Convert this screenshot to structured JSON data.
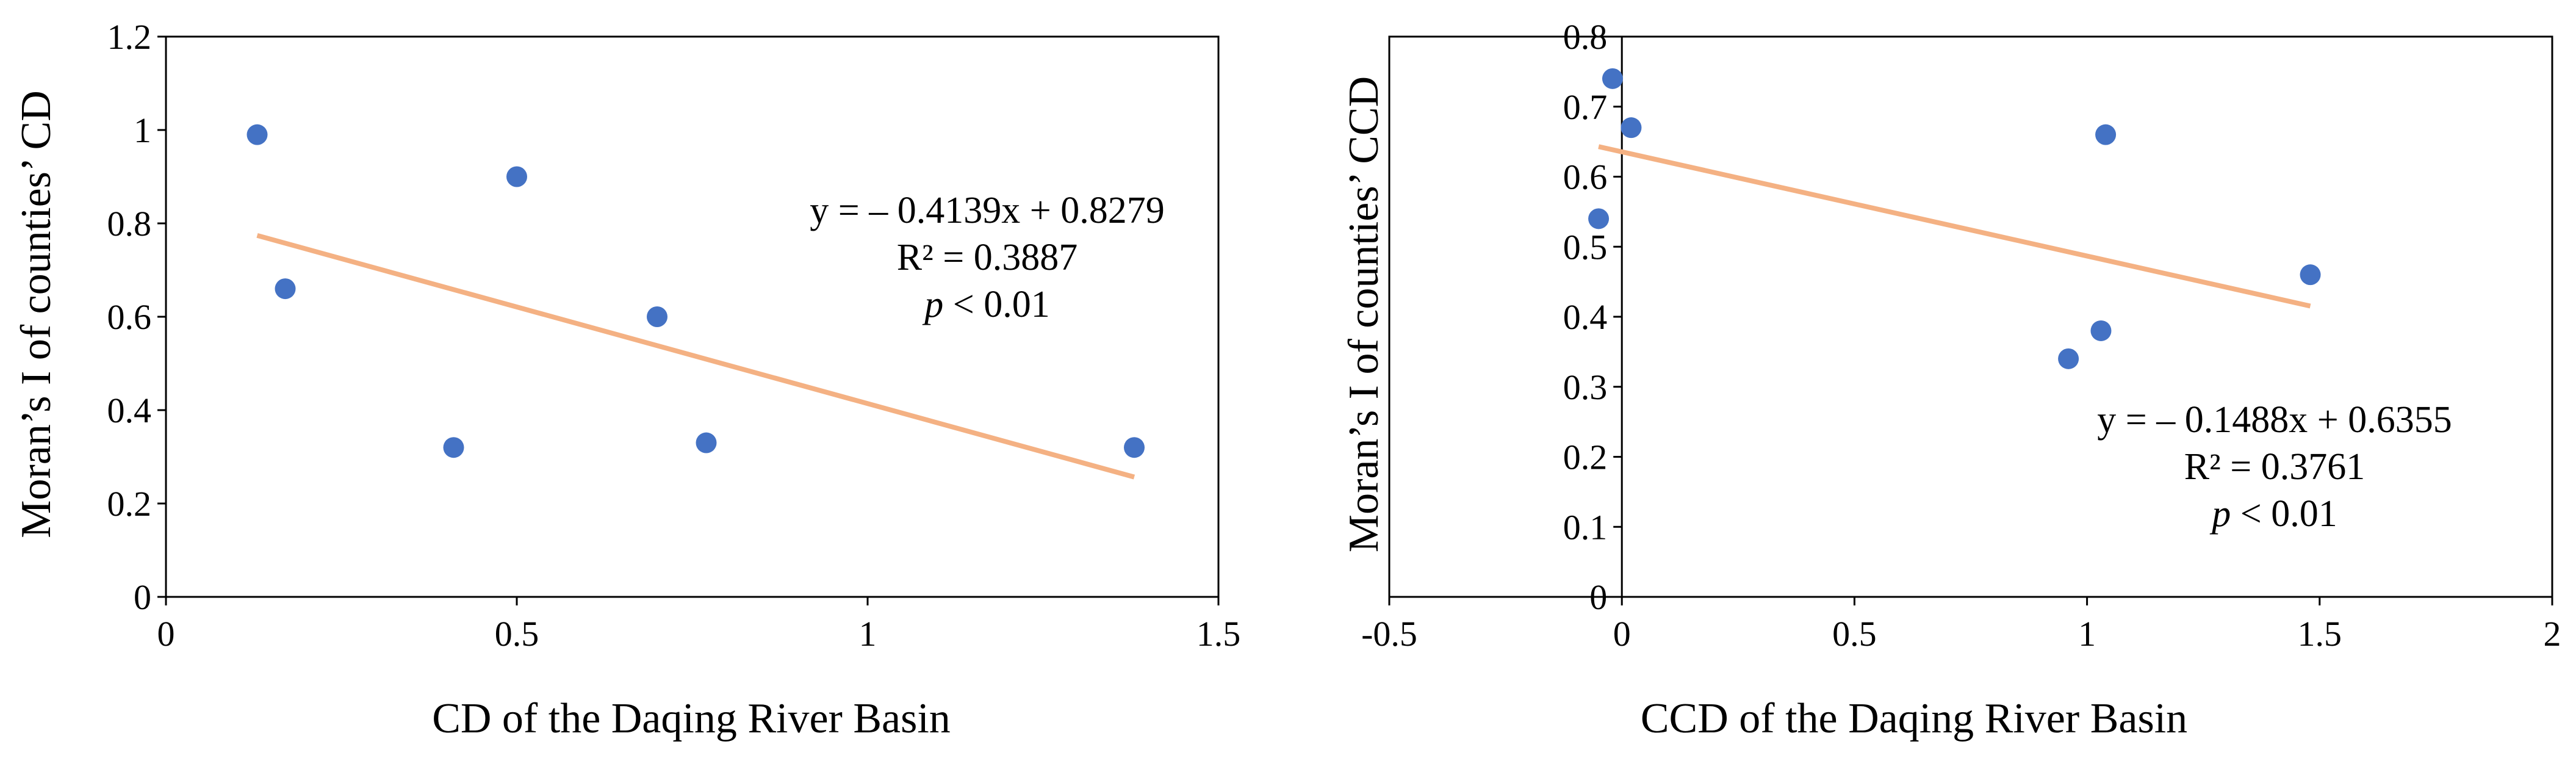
{
  "chart_data": [
    {
      "type": "scatter",
      "title": "",
      "xlabel": "CD of the Daqing River Basin",
      "ylabel": "Moran’s I of counties’ CD",
      "xlim": [
        0,
        1.5
      ],
      "ylim": [
        0,
        1.2
      ],
      "xticks": [
        0,
        0.5,
        1,
        1.5
      ],
      "xtick_labels": [
        "0",
        "0.5",
        "1",
        "1.5"
      ],
      "yticks": [
        0,
        0.2,
        0.4,
        0.6,
        0.8,
        1,
        1.2
      ],
      "ytick_labels": [
        "0",
        "0.2",
        "0.4",
        "0.6",
        "0.8",
        "1",
        "1.2"
      ],
      "grid": false,
      "points": [
        {
          "x": 0.13,
          "y": 0.99
        },
        {
          "x": 0.17,
          "y": 0.66
        },
        {
          "x": 0.41,
          "y": 0.32
        },
        {
          "x": 0.5,
          "y": 0.9
        },
        {
          "x": 0.7,
          "y": 0.6
        },
        {
          "x": 0.77,
          "y": 0.33
        },
        {
          "x": 1.38,
          "y": 0.32
        }
      ],
      "trendline": {
        "slope": -0.4139,
        "intercept": 0.8279,
        "x_start": 0.13,
        "x_end": 1.38
      },
      "annotation": {
        "line1": "y = – 0.4139x + 0.8279",
        "line2": "R² = 0.3887",
        "p_symbol": "p",
        "p_rest": " < 0.01"
      },
      "colors": {
        "points": "#4472c4",
        "trendline": "#f4b183"
      }
    },
    {
      "type": "scatter",
      "title": "",
      "xlabel": "CCD of the Daqing River Basin",
      "ylabel": "Moran’s I of counties’ CCD",
      "xlim": [
        -0.5,
        2
      ],
      "ylim": [
        0,
        0.8
      ],
      "xticks": [
        -0.5,
        0,
        0.5,
        1,
        1.5,
        2
      ],
      "xtick_labels": [
        "-0.5",
        "0",
        "0.5",
        "1",
        "1.5",
        "2"
      ],
      "yticks": [
        0,
        0.1,
        0.2,
        0.3,
        0.4,
        0.5,
        0.6,
        0.7,
        0.8
      ],
      "ytick_labels": [
        "0",
        "0.1",
        "0.2",
        "0.3",
        "0.4",
        "0.5",
        "0.6",
        "0.7",
        "0.8"
      ],
      "grid": false,
      "points": [
        {
          "x": -0.02,
          "y": 0.74
        },
        {
          "x": 0.02,
          "y": 0.67
        },
        {
          "x": -0.05,
          "y": 0.54
        },
        {
          "x": 1.04,
          "y": 0.66
        },
        {
          "x": 0.96,
          "y": 0.34
        },
        {
          "x": 1.03,
          "y": 0.38
        },
        {
          "x": 1.48,
          "y": 0.46
        }
      ],
      "trendline": {
        "slope": -0.1488,
        "intercept": 0.6355,
        "x_start": -0.05,
        "x_end": 1.48
      },
      "annotation": {
        "line1": "y = – 0.1488x + 0.6355",
        "line2": "R² = 0.3761",
        "p_symbol": "p",
        "p_rest": " < 0.01"
      },
      "colors": {
        "points": "#4472c4",
        "trendline": "#f4b183"
      }
    }
  ]
}
